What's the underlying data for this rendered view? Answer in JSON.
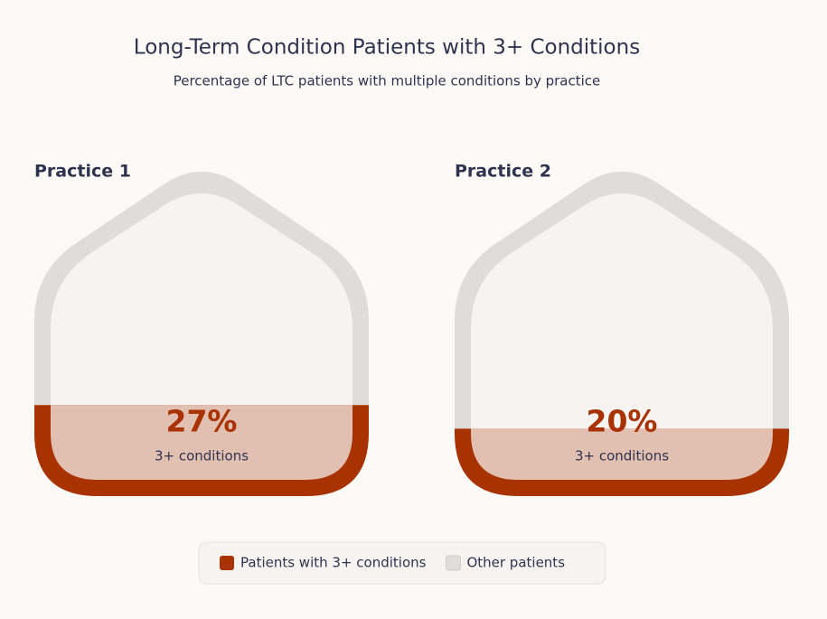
{
  "chart_data": {
    "type": "house",
    "title": "Long-Term Condition Patients with 3+ Conditions",
    "subtitle": "Percentage of LTC patients with multiple conditions by practice",
    "categories": [
      "Practice 1",
      "Practice 2"
    ],
    "annotation": "3+ conditions",
    "series": [
      {
        "name": "Patients with 3+ conditions",
        "color": "#a83200",
        "values": [
          27,
          20
        ],
        "value_labels": [
          "27%",
          "20%"
        ]
      },
      {
        "name": "Other patients",
        "color": "#dfddd9"
      }
    ]
  }
}
